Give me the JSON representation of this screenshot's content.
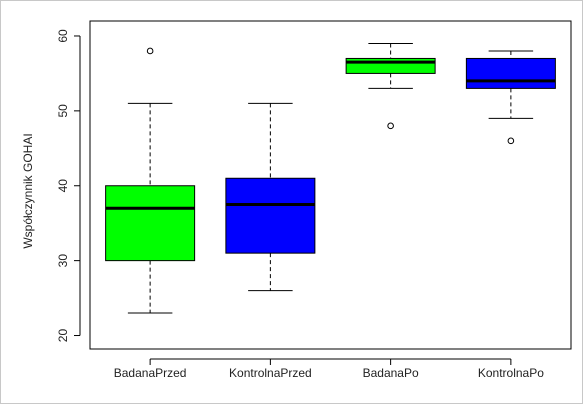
{
  "chart_data": {
    "type": "boxplot",
    "title": "",
    "xlabel": "",
    "ylabel": "Współczynnik GOHAI",
    "ylim": [
      18.2,
      62.0
    ],
    "yticks": [
      20,
      30,
      40,
      50,
      60
    ],
    "grid": false,
    "legend": "none",
    "categories": [
      "BadanaPrzed",
      "KontrolnaPrzed",
      "BadanaPo",
      "KontrolnaPo"
    ],
    "boxes": [
      {
        "name": "BadanaPrzed",
        "min": 23,
        "q1": 30,
        "median": 37,
        "q3": 40,
        "max": 51,
        "outliers": [
          58
        ],
        "color": "#00ff00"
      },
      {
        "name": "KontrolnaPrzed",
        "min": 26,
        "q1": 31,
        "median": 37.5,
        "q3": 41,
        "max": 51,
        "outliers": [],
        "color": "#0000ff"
      },
      {
        "name": "BadanaPo",
        "min": 53,
        "q1": 55,
        "median": 56.5,
        "q3": 57,
        "max": 59,
        "outliers": [
          48
        ],
        "color": "#00ff00"
      },
      {
        "name": "KontrolnaPo",
        "min": 49,
        "q1": 53,
        "median": 54,
        "q3": 57,
        "max": 58,
        "outliers": [
          46
        ],
        "color": "#0000ff"
      }
    ]
  }
}
